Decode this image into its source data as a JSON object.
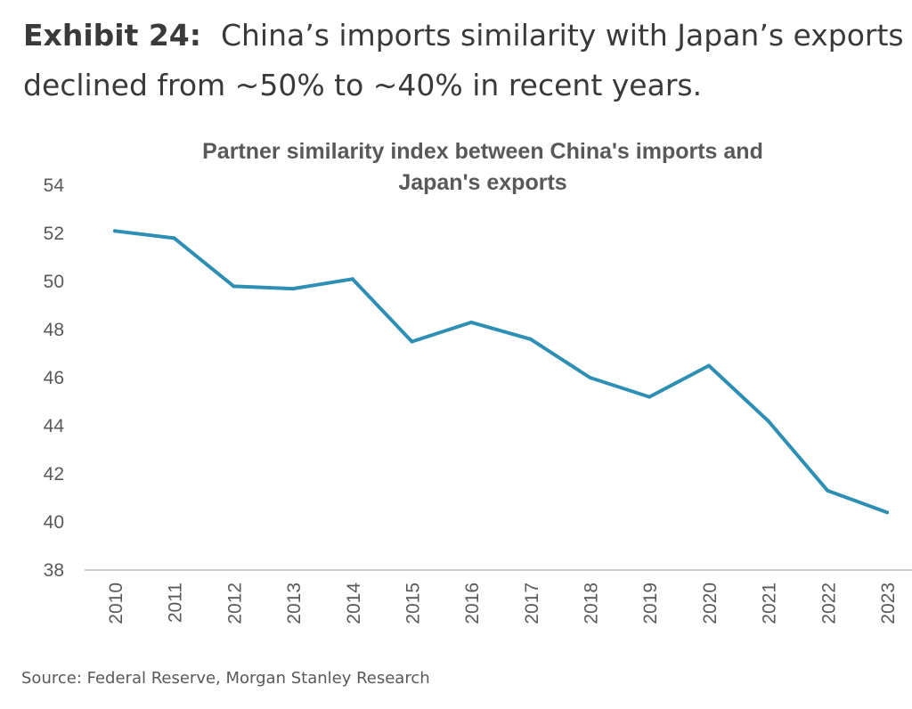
{
  "exhibit": {
    "label": "Exhibit 24:",
    "text_line1": "China’s imports similarity with Japan’s exports has",
    "text_line2": "declined from ~50% to ~40% in recent years."
  },
  "chart_data": {
    "type": "line",
    "title_lines": [
      "Partner similarity index between China's imports and",
      "Japan's exports"
    ],
    "categories": [
      "2010",
      "2011",
      "2012",
      "2013",
      "2014",
      "2015",
      "2016",
      "2017",
      "2018",
      "2019",
      "2020",
      "2021",
      "2022",
      "2023"
    ],
    "series": [
      {
        "name": "Partner similarity index",
        "values": [
          52.1,
          51.8,
          49.8,
          49.7,
          50.1,
          47.5,
          48.3,
          47.6,
          46.0,
          45.2,
          46.5,
          44.2,
          41.3,
          40.4
        ]
      }
    ],
    "yticks": [
      38,
      40,
      42,
      44,
      46,
      48,
      50,
      52,
      54
    ],
    "ylim": [
      38,
      54
    ],
    "xlabel": "",
    "ylabel": "",
    "grid": false,
    "legend": "none",
    "line_color": "#2e8fb5",
    "axis_color": "#bfbfbf"
  },
  "source": "Source: Federal Reserve, Morgan Stanley Research"
}
